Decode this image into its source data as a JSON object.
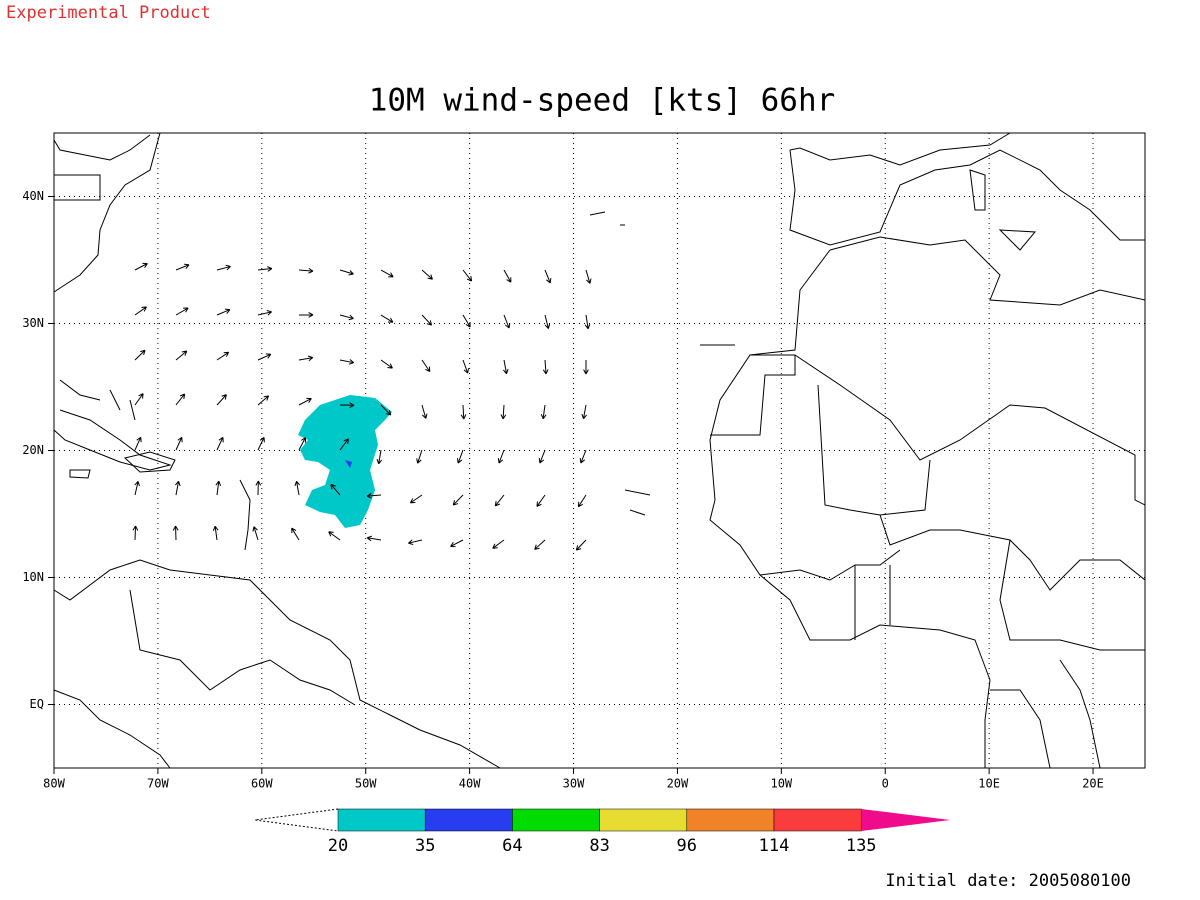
{
  "header": {
    "product": "Experimental Product",
    "title": "10M wind-speed [kts] 66hr"
  },
  "map": {
    "xlim": [
      -80,
      25
    ],
    "ylim": [
      -5,
      45
    ],
    "xticks": [
      {
        "value": -80,
        "label": "80W"
      },
      {
        "value": -70,
        "label": "70W"
      },
      {
        "value": -60,
        "label": "60W"
      },
      {
        "value": -50,
        "label": "50W"
      },
      {
        "value": -40,
        "label": "40W"
      },
      {
        "value": -30,
        "label": "30W"
      },
      {
        "value": -20,
        "label": "20W"
      },
      {
        "value": -10,
        "label": "10W"
      },
      {
        "value": 0,
        "label": "0"
      },
      {
        "value": 10,
        "label": "10E"
      },
      {
        "value": 20,
        "label": "20E"
      }
    ],
    "yticks": [
      {
        "value": 0,
        "label": "EQ"
      },
      {
        "value": 10,
        "label": "10N"
      },
      {
        "value": 20,
        "label": "20N"
      },
      {
        "value": 30,
        "label": "30N"
      },
      {
        "value": 40,
        "label": "40N"
      }
    ],
    "grid": true
  },
  "colorbar": {
    "levels": [
      20,
      35,
      64,
      83,
      96,
      114,
      135
    ],
    "colors": [
      "#00c8c8",
      "#283cf0",
      "#00dc00",
      "#e6dc32",
      "#f08228",
      "#fa3c3c",
      "#f00a8c"
    ]
  },
  "footer": {
    "initial_date": "Initial date: 2005080100"
  }
}
